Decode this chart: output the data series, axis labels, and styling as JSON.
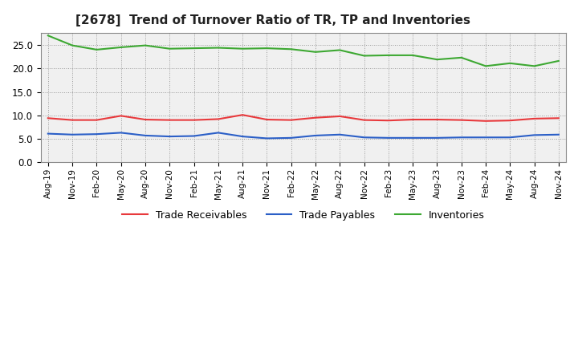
{
  "title": "[2678]  Trend of Turnover Ratio of TR, TP and Inventories",
  "x_labels": [
    "Aug-19",
    "Nov-19",
    "Feb-20",
    "May-20",
    "Aug-20",
    "Nov-20",
    "Feb-21",
    "May-21",
    "Aug-21",
    "Nov-21",
    "Feb-22",
    "May-22",
    "Aug-22",
    "Nov-22",
    "Feb-23",
    "May-23",
    "Aug-23",
    "Nov-23",
    "Feb-24",
    "May-24",
    "Aug-24",
    "Nov-24"
  ],
  "trade_receivables": [
    9.4,
    9.0,
    9.0,
    9.9,
    9.1,
    9.0,
    9.0,
    9.2,
    10.1,
    9.1,
    9.0,
    9.5,
    9.8,
    9.0,
    8.9,
    9.1,
    9.1,
    9.0,
    8.8,
    8.9,
    9.3,
    9.4
  ],
  "trade_payables": [
    6.1,
    5.9,
    6.0,
    6.3,
    5.7,
    5.5,
    5.6,
    6.3,
    5.5,
    5.1,
    5.2,
    5.7,
    5.9,
    5.3,
    5.2,
    5.2,
    5.2,
    5.3,
    5.3,
    5.3,
    5.8,
    5.9
  ],
  "inventories": [
    27.0,
    24.9,
    24.0,
    24.5,
    24.9,
    24.2,
    24.3,
    24.4,
    24.2,
    24.3,
    24.1,
    23.5,
    23.9,
    22.7,
    22.8,
    22.8,
    21.9,
    22.3,
    20.5,
    21.1,
    20.5,
    21.6
  ],
  "tr_color": "#e8393c",
  "tp_color": "#2b5fc7",
  "inv_color": "#3da832",
  "ylim": [
    0,
    27.5
  ],
  "yticks": [
    0.0,
    5.0,
    10.0,
    15.0,
    20.0,
    25.0
  ],
  "background_color": "#ffffff",
  "plot_bg_color": "#f0f0f0",
  "grid_color": "#999999",
  "legend_labels": [
    "Trade Receivables",
    "Trade Payables",
    "Inventories"
  ]
}
